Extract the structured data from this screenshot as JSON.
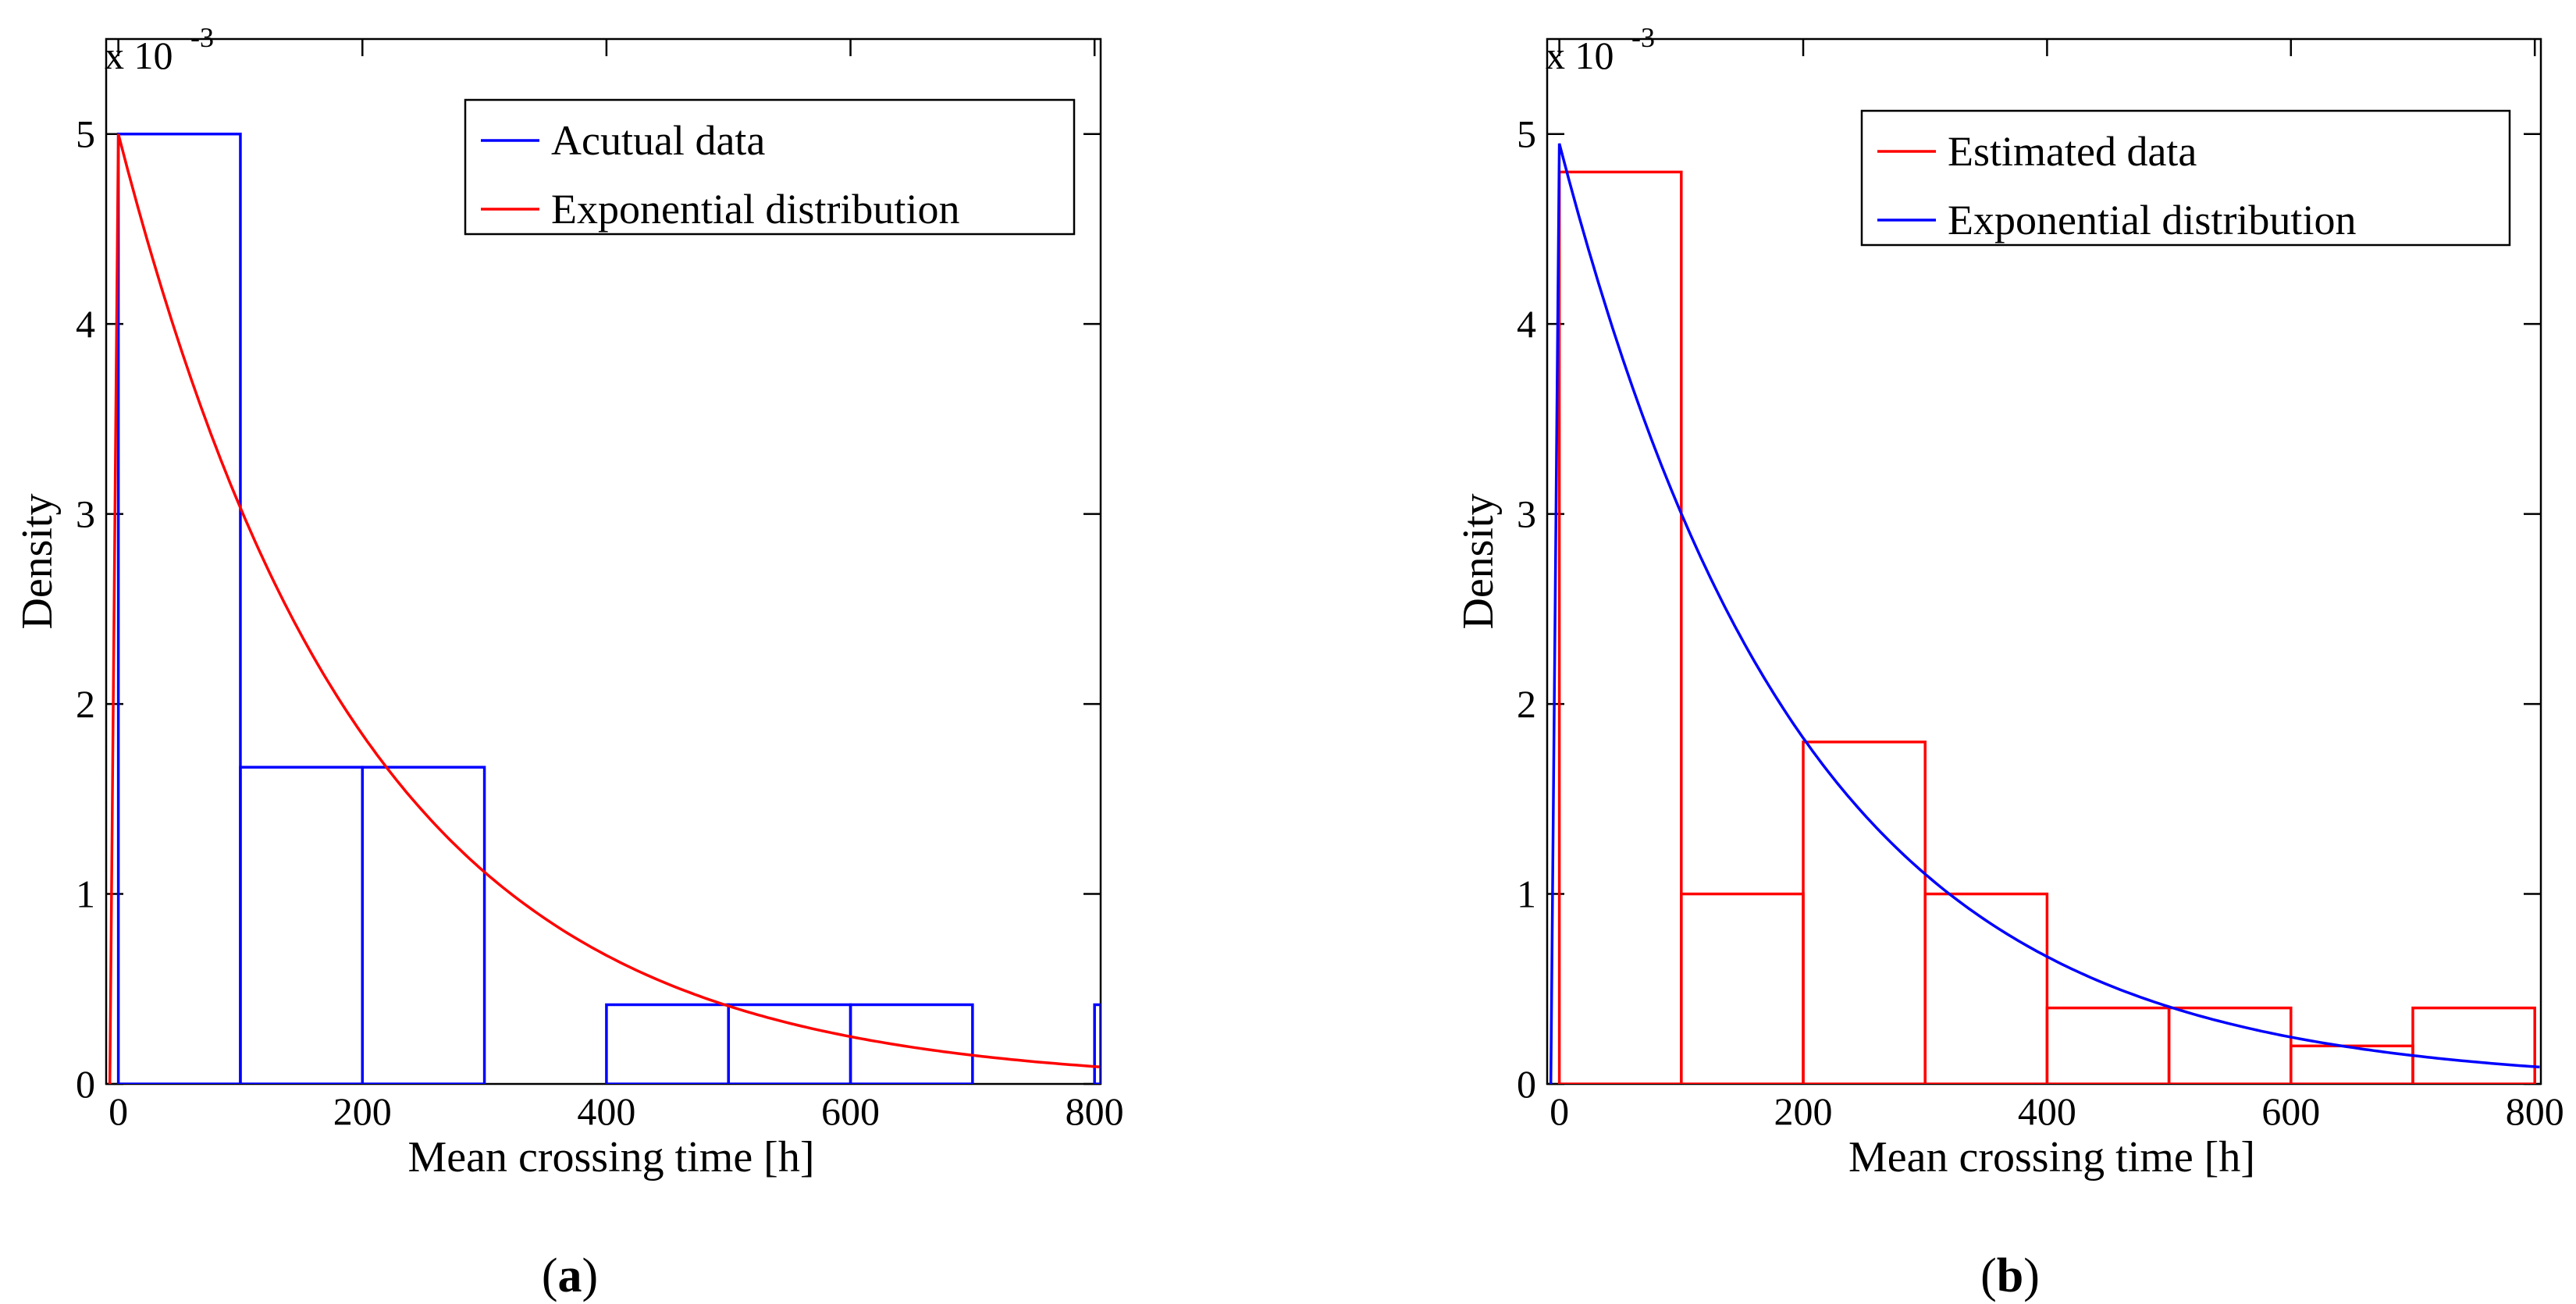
{
  "chart_data": [
    {
      "type": "histogram",
      "panel_label": "a",
      "xlabel": "Mean crossing time [h]",
      "ylabel": "Density",
      "y_exponent_label": "x 10",
      "y_exponent_power": "-3",
      "xlim": [
        -10,
        805
      ],
      "ylim": [
        0,
        5.5
      ],
      "xticks": [
        0,
        200,
        400,
        600,
        800
      ],
      "yticks": [
        0,
        1,
        2,
        3,
        4,
        5
      ],
      "xtick_labels": [
        "0",
        "200",
        "400",
        "600",
        "800"
      ],
      "ytick_labels": [
        "0",
        "1",
        "2",
        "3",
        "4",
        "5"
      ],
      "legend": {
        "position": "top-right",
        "entries": [
          "Acutual data",
          "Exponential distribution"
        ]
      },
      "histogram": {
        "name": "Acutual data",
        "color": "#0000ff",
        "bins": [
          {
            "from": 0,
            "to": 100,
            "value": 5.0
          },
          {
            "from": 100,
            "to": 200,
            "value": 1.667
          },
          {
            "from": 200,
            "to": 300,
            "value": 1.667
          },
          {
            "from": 300,
            "to": 400,
            "value": 0.0
          },
          {
            "from": 400,
            "to": 500,
            "value": 0.417
          },
          {
            "from": 500,
            "to": 600,
            "value": 0.417
          },
          {
            "from": 600,
            "to": 700,
            "value": 0.417
          },
          {
            "from": 700,
            "to": 800,
            "value": 0.0
          },
          {
            "from": 800,
            "to": 805,
            "value": 0.417
          }
        ]
      },
      "curve": {
        "name": "Exponential distribution",
        "color": "#ff0000",
        "type": "exponential",
        "peak_density": 5.0,
        "mean": 200,
        "start_x": -7
      }
    },
    {
      "type": "histogram",
      "panel_label": "b",
      "xlabel": "Mean crossing time [h]",
      "ylabel": "Density",
      "y_exponent_label": "x 10",
      "y_exponent_power": "-3",
      "xlim": [
        -10,
        805
      ],
      "ylim": [
        0,
        5.5
      ],
      "xticks": [
        0,
        200,
        400,
        600,
        800
      ],
      "yticks": [
        0,
        1,
        2,
        3,
        4,
        5
      ],
      "xtick_labels": [
        "0",
        "200",
        "400",
        "600",
        "800"
      ],
      "ytick_labels": [
        "0",
        "1",
        "2",
        "3",
        "4",
        "5"
      ],
      "legend": {
        "position": "top-right",
        "entries": [
          "Estimated data",
          "Exponential distribution"
        ]
      },
      "histogram": {
        "name": "Estimated data",
        "color": "#ff0000",
        "bins": [
          {
            "from": 0,
            "to": 100,
            "value": 4.8
          },
          {
            "from": 100,
            "to": 200,
            "value": 1.0
          },
          {
            "from": 200,
            "to": 300,
            "value": 1.8
          },
          {
            "from": 300,
            "to": 400,
            "value": 1.0
          },
          {
            "from": 400,
            "to": 500,
            "value": 0.4
          },
          {
            "from": 500,
            "to": 600,
            "value": 0.4
          },
          {
            "from": 600,
            "to": 700,
            "value": 0.2
          },
          {
            "from": 700,
            "to": 800,
            "value": 0.4
          }
        ]
      },
      "curve": {
        "name": "Exponential distribution",
        "color": "#0000ff",
        "type": "exponential",
        "peak_density": 4.95,
        "mean": 200,
        "start_x": -7
      }
    }
  ]
}
